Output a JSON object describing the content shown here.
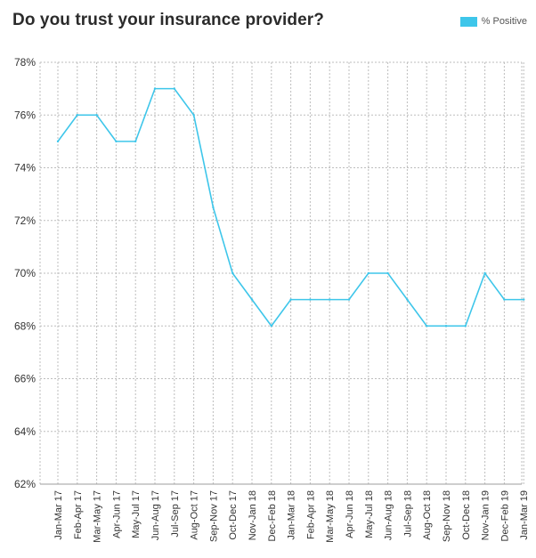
{
  "chart_data": {
    "type": "line",
    "title": "Do you trust your insurance provider?",
    "xlabel": "",
    "ylabel": "",
    "categories": [
      "Jan-Mar 17",
      "Feb-Apr 17",
      "Mar-May 17",
      "Apr-Jun 17",
      "May-Jul 17",
      "Jun-Aug 17",
      "Jul-Sep 17",
      "Aug-Oct 17",
      "Sep-Nov 17",
      "Oct-Dec 17",
      "Nov-Jan 18",
      "Dec-Feb 18",
      "Jan-Mar 18",
      "Feb-Apr 18",
      "Mar-May 18",
      "Apr-Jun 18",
      "May-Jul 18",
      "Jun-Aug 18",
      "Jul-Sep 18",
      "Aug-Oct 18",
      "Sep-Nov 18",
      "Oct-Dec 18",
      "Nov-Jan 19",
      "Dec-Feb 19",
      "Jan-Mar 19"
    ],
    "x_points": [
      "Jan-Mar 17",
      "Feb-Apr 17",
      "Mar-May 17",
      "Apr-Jun 17",
      "May-Jul 17",
      "Jun-Aug 17",
      "Jul-Sep 17",
      "Aug-Oct 17",
      "Sep-Nov 17",
      "Oct-Dec 17",
      "Nov-Jan 18",
      "Dec-Feb 18",
      "Jan-Mar 18",
      "Feb-Apr 18",
      "Mar-May 18",
      "Apr-Jun 18",
      "May-Jul 18",
      "Jun-Aug 18",
      "Jul-Sep 18",
      "Aug-Oct 18",
      "Sep-Nov 18",
      "Oct-Dec 18",
      "Nov-Jan 19",
      "Dec-Feb 19",
      "Jan-Mar 19"
    ],
    "series": [
      {
        "name": "% Positive",
        "color": "#3ec6ea",
        "values": [
          75,
          76,
          76,
          75,
          75,
          77,
          77,
          76,
          72.5,
          70,
          69,
          68,
          69,
          69,
          69,
          69,
          70,
          70,
          69,
          68,
          68,
          68,
          70,
          69,
          69
        ]
      }
    ],
    "ylim": [
      62,
      78
    ],
    "yticks": [
      62,
      64,
      66,
      68,
      70,
      72,
      74,
      76,
      78
    ],
    "ytick_labels": [
      "62%",
      "64%",
      "66%",
      "68%",
      "70%",
      "72%",
      "74%",
      "76%",
      "78%"
    ],
    "grid": true,
    "grid_style": "dashed",
    "legend": "top-right"
  }
}
